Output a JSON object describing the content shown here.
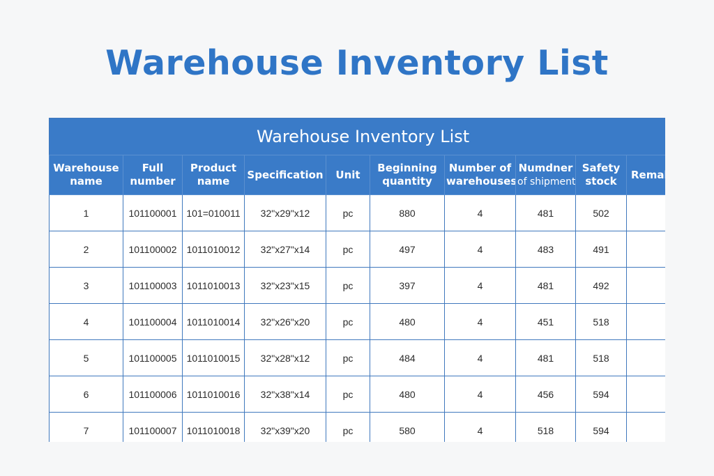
{
  "page": {
    "title": "Warehouse Inventory List"
  },
  "table": {
    "caption": "Warehouse Inventory List",
    "headers": [
      {
        "line1": "Warehouse",
        "line2": "name"
      },
      {
        "line1": "Full",
        "line2": "number"
      },
      {
        "line1": "Product",
        "line2": "name"
      },
      {
        "line1": "Specification",
        "line2": ""
      },
      {
        "line1": "Unit",
        "line2": ""
      },
      {
        "line1": "Beginning",
        "line2": "quantity"
      },
      {
        "line1": "Number of",
        "line2": "warehouses"
      },
      {
        "line1": "Numdner",
        "line2": "of shipment"
      },
      {
        "line1": "Safety",
        "line2": "stock"
      },
      {
        "line1": "Remak",
        "line2": ""
      }
    ],
    "rows": [
      [
        "1",
        "101100001",
        "101=010011",
        "32\"x29\"x12",
        "pc",
        "880",
        "4",
        "481",
        "502",
        ""
      ],
      [
        "2",
        "101100002",
        "1011010012",
        "32\"x27\"x14",
        "pc",
        "497",
        "4",
        "483",
        "491",
        ""
      ],
      [
        "3",
        "101100003",
        "1011010013",
        "32\"x23\"x15",
        "pc",
        "397",
        "4",
        "481",
        "492",
        ""
      ],
      [
        "4",
        "101100004",
        "1011010014",
        "32\"x26\"x20",
        "pc",
        "480",
        "4",
        "451",
        "518",
        ""
      ],
      [
        "5",
        "101100005",
        "1011010015",
        "32\"x28\"x12",
        "pc",
        "484",
        "4",
        "481",
        "518",
        ""
      ],
      [
        "6",
        "101100006",
        "1011010016",
        "32\"x38\"x14",
        "pc",
        "480",
        "4",
        "456",
        "594",
        ""
      ],
      [
        "7",
        "101100007",
        "1011010018",
        "32\"x39\"x20",
        "pc",
        "580",
        "4",
        "518",
        "594",
        ""
      ]
    ]
  },
  "colors": {
    "title": "#2f75c6",
    "header_bg": "#3a7bc8",
    "border": "#3f78bd",
    "page_bg": "#f6f7f8"
  }
}
